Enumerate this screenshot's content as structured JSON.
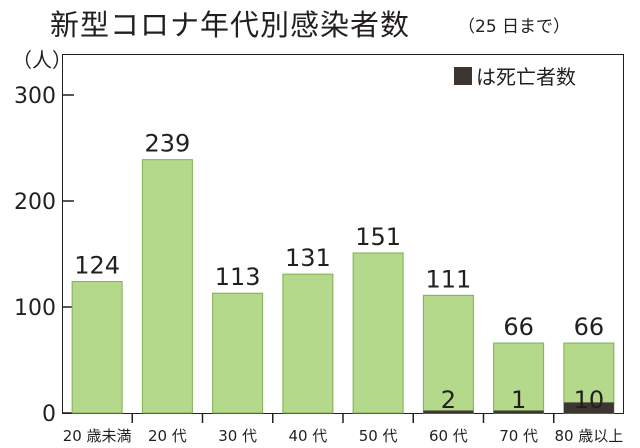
{
  "title": "新型コロナ年代別感染者数",
  "subtitle": "（25 日まで）",
  "unit_label": "（人）",
  "legend": {
    "label": "は死亡者数",
    "color": "#3d3530"
  },
  "colors": {
    "bar": "#b5d98a",
    "bar_stroke": "#7fae52",
    "death": "#3d3530"
  },
  "chart_data": {
    "type": "bar",
    "title": "新型コロナ年代別感染者数",
    "ylabel": "（人）",
    "ylim": [
      0,
      300
    ],
    "yticks": [
      "0",
      "100",
      "200",
      "300"
    ],
    "categories": [
      "20 歳未満",
      "20 代",
      "30 代",
      "40 代",
      "50 代",
      "60 代",
      "70 代",
      "80 歳以上"
    ],
    "series": [
      {
        "values": [
          124,
          239,
          113,
          131,
          151,
          111,
          66,
          66
        ]
      },
      {
        "name": "死亡者数",
        "values": [
          0,
          0,
          0,
          0,
          0,
          2,
          1,
          10
        ]
      }
    ],
    "death_labels": [
      "",
      "",
      "",
      "",
      "",
      "2",
      "1",
      "10"
    ],
    "legend_position": "top-right",
    "grid": false
  }
}
